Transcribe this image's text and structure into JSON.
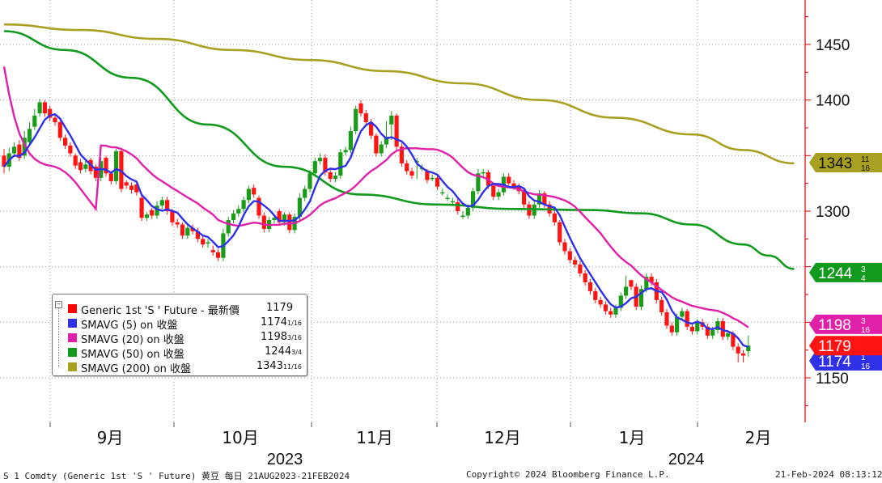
{
  "chart_data": {
    "type": "candlestick",
    "ylim": [
      1110,
      1490
    ],
    "ytick_labels": [
      "1450",
      "1400",
      "1300",
      "1150"
    ],
    "ytick_values": [
      1450,
      1400,
      1300,
      1150
    ],
    "hidden_gridlines": [
      1350,
      1250,
      1200
    ],
    "month_labels": [
      "9月",
      "10月",
      "11月",
      "12月",
      "1月",
      "2月"
    ],
    "year_labels": [
      "2023",
      "2024"
    ],
    "series": [
      {
        "name": "Generic 1st 'S ' Future - 最新價",
        "color": "#ff0000",
        "legend_value": "1179",
        "tag_label": "1179",
        "closes": [
          1340,
          1352,
          1358,
          1348,
          1366,
          1374,
          1386,
          1398,
          1388,
          1384,
          1380,
          1366,
          1359,
          1352,
          1341,
          1337,
          1342,
          1336,
          1330,
          1345,
          1334,
          1327,
          1354,
          1320,
          1323,
          1319,
          1317,
          1294,
          1297,
          1296,
          1305,
          1310,
          1300,
          1290,
          1288,
          1278,
          1285,
          1282,
          1275,
          1270,
          1272,
          1263,
          1258,
          1280,
          1292,
          1298,
          1302,
          1310,
          1320,
          1315,
          1296,
          1284,
          1292,
          1294,
          1290,
          1297,
          1283,
          1295,
          1312,
          1320,
          1334,
          1345,
          1348,
          1335,
          1329,
          1332,
          1353,
          1355,
          1372,
          1392,
          1388,
          1380,
          1368,
          1352,
          1360,
          1367,
          1386,
          1358,
          1343,
          1336,
          1332,
          1345,
          1339,
          1328,
          1330,
          1322,
          1317,
          1312,
          1309,
          1300,
          1296,
          1303,
          1318,
          1334,
          1335,
          1323,
          1313,
          1317,
          1331,
          1325,
          1322,
          1318,
          1306,
          1296,
          1306,
          1316,
          1306,
          1298,
          1290,
          1272,
          1264,
          1256,
          1252,
          1244,
          1236,
          1228,
          1220,
          1216,
          1210,
          1207,
          1213,
          1224,
          1232,
          1232,
          1214,
          1230,
          1241,
          1236,
          1220,
          1209,
          1197,
          1191,
          1205,
          1210,
          1196,
          1192,
          1200,
          1196,
          1188,
          1193,
          1201,
          1187,
          1190,
          1178,
          1172,
          1170,
          1179
        ],
        "opens": [
          1350,
          1340,
          1352,
          1360,
          1350,
          1362,
          1376,
          1388,
          1398,
          1392,
          1384,
          1380,
          1366,
          1359,
          1350,
          1344,
          1338,
          1346,
          1340,
          1330,
          1348,
          1334,
          1327,
          1354,
          1326,
          1323,
          1324,
          1312,
          1294,
          1301,
          1296,
          1305,
          1310,
          1300,
          1290,
          1288,
          1278,
          1285,
          1282,
          1275,
          1272,
          1265,
          1263,
          1258,
          1280,
          1292,
          1298,
          1302,
          1310,
          1321,
          1312,
          1296,
          1284,
          1292,
          1300,
          1290,
          1297,
          1283,
          1295,
          1312,
          1320,
          1334,
          1345,
          1348,
          1335,
          1329,
          1332,
          1353,
          1355,
          1372,
          1397,
          1388,
          1380,
          1368,
          1352,
          1360,
          1378,
          1386,
          1358,
          1343,
          1336,
          1345,
          1339,
          1336,
          1330,
          1330,
          1317,
          1312,
          1309,
          1308,
          1296,
          1296,
          1303,
          1318,
          1334,
          1335,
          1323,
          1313,
          1317,
          1331,
          1325,
          1322,
          1318,
          1306,
          1296,
          1306,
          1316,
          1306,
          1298,
          1290,
          1272,
          1264,
          1256,
          1252,
          1244,
          1236,
          1228,
          1220,
          1216,
          1210,
          1207,
          1213,
          1224,
          1238,
          1232,
          1214,
          1230,
          1241,
          1236,
          1220,
          1209,
          1197,
          1191,
          1205,
          1210,
          1196,
          1192,
          1200,
          1196,
          1188,
          1193,
          1201,
          1187,
          1190,
          1178,
          1172,
          1174
        ],
        "highs": [
          1356,
          1357,
          1362,
          1364,
          1372,
          1380,
          1392,
          1401,
          1400,
          1395,
          1387,
          1382,
          1369,
          1362,
          1352,
          1347,
          1346,
          1348,
          1342,
          1348,
          1350,
          1336,
          1356,
          1356,
          1328,
          1326,
          1326,
          1314,
          1299,
          1303,
          1309,
          1313,
          1313,
          1302,
          1293,
          1290,
          1288,
          1288,
          1285,
          1278,
          1275,
          1269,
          1266,
          1284,
          1295,
          1301,
          1305,
          1313,
          1323,
          1324,
          1314,
          1299,
          1295,
          1297,
          1302,
          1299,
          1299,
          1298,
          1316,
          1323,
          1337,
          1348,
          1352,
          1351,
          1338,
          1335,
          1356,
          1358,
          1376,
          1395,
          1400,
          1391,
          1383,
          1370,
          1363,
          1381,
          1390,
          1388,
          1361,
          1346,
          1339,
          1348,
          1342,
          1338,
          1333,
          1333,
          1320,
          1315,
          1312,
          1311,
          1300,
          1306,
          1321,
          1338,
          1338,
          1337,
          1326,
          1320,
          1334,
          1334,
          1328,
          1325,
          1320,
          1309,
          1309,
          1319,
          1318,
          1309,
          1301,
          1292,
          1275,
          1267,
          1259,
          1255,
          1247,
          1239,
          1231,
          1223,
          1219,
          1213,
          1216,
          1227,
          1242,
          1235,
          1235,
          1233,
          1244,
          1244,
          1239,
          1223,
          1212,
          1200,
          1208,
          1213,
          1212,
          1199,
          1203,
          1203,
          1199,
          1196,
          1204,
          1204,
          1193,
          1192,
          1181,
          1175,
          1188
        ],
        "lows": [
          1334,
          1336,
          1349,
          1345,
          1347,
          1359,
          1373,
          1385,
          1385,
          1381,
          1377,
          1363,
          1356,
          1349,
          1338,
          1334,
          1335,
          1333,
          1327,
          1327,
          1331,
          1324,
          1324,
          1317,
          1320,
          1316,
          1314,
          1291,
          1291,
          1293,
          1293,
          1302,
          1297,
          1287,
          1285,
          1275,
          1275,
          1279,
          1272,
          1267,
          1267,
          1260,
          1255,
          1255,
          1277,
          1289,
          1295,
          1299,
          1307,
          1312,
          1293,
          1281,
          1281,
          1289,
          1287,
          1287,
          1280,
          1280,
          1292,
          1309,
          1317,
          1331,
          1342,
          1332,
          1326,
          1326,
          1329,
          1350,
          1352,
          1369,
          1385,
          1377,
          1365,
          1349,
          1349,
          1357,
          1364,
          1355,
          1340,
          1333,
          1329,
          1329,
          1336,
          1325,
          1327,
          1319,
          1314,
          1309,
          1306,
          1297,
          1293,
          1293,
          1300,
          1315,
          1331,
          1320,
          1310,
          1310,
          1314,
          1322,
          1319,
          1315,
          1303,
          1293,
          1293,
          1303,
          1303,
          1295,
          1287,
          1269,
          1261,
          1253,
          1249,
          1241,
          1233,
          1225,
          1217,
          1213,
          1207,
          1204,
          1204,
          1210,
          1221,
          1229,
          1211,
          1211,
          1227,
          1233,
          1217,
          1206,
          1194,
          1188,
          1188,
          1202,
          1193,
          1189,
          1189,
          1193,
          1185,
          1185,
          1190,
          1184,
          1184,
          1175,
          1164,
          1164,
          1169
        ]
      },
      {
        "name": "SMAVG (5)  on 收盤",
        "color": "#3030e8",
        "legend_value": "1174",
        "legend_frac": "1/16",
        "tag_label": "1174",
        "tag_frac": "1/16"
      },
      {
        "name": "SMAVG (20)  on 收盤",
        "color": "#e020a8",
        "legend_value": "1198",
        "legend_frac": "3/16",
        "tag_label": "1198",
        "tag_frac": "3/16"
      },
      {
        "name": "SMAVG (50)  on 收盤",
        "color": "#119a1d",
        "legend_value": "1244",
        "legend_frac": "3/4",
        "tag_label": "1244",
        "tag_frac": "3/4"
      },
      {
        "name": "SMAVG (200)  on 收盤",
        "color": "#a8a020",
        "legend_value": "1343",
        "legend_frac": "11/16",
        "tag_label": "1343",
        "tag_frac": "11/16"
      }
    ],
    "sma50_path": [
      [
        0,
        1462
      ],
      [
        12,
        1445
      ],
      [
        25,
        1420
      ],
      [
        40,
        1378
      ],
      [
        55,
        1340
      ],
      [
        70,
        1315
      ],
      [
        85,
        1306
      ],
      [
        100,
        1302
      ],
      [
        115,
        1301
      ],
      [
        125,
        1298
      ],
      [
        135,
        1288
      ],
      [
        145,
        1270
      ],
      [
        150,
        1260
      ],
      [
        155,
        1248
      ]
    ],
    "sma200_path": [
      [
        0,
        1468
      ],
      [
        15,
        1463
      ],
      [
        30,
        1455
      ],
      [
        45,
        1445
      ],
      [
        60,
        1436
      ],
      [
        75,
        1426
      ],
      [
        90,
        1415
      ],
      [
        105,
        1400
      ],
      [
        120,
        1384
      ],
      [
        135,
        1369
      ],
      [
        145,
        1355
      ],
      [
        155,
        1343
      ]
    ]
  },
  "footer": {
    "left": "S 1 Comdty (Generic 1st 'S ' Future) 黄豆  每日 21AUG2023-21FEB2024",
    "center": "Copyright© 2024 Bloomberg Finance L.P.",
    "right": "21-Feb-2024 08:13:12"
  }
}
